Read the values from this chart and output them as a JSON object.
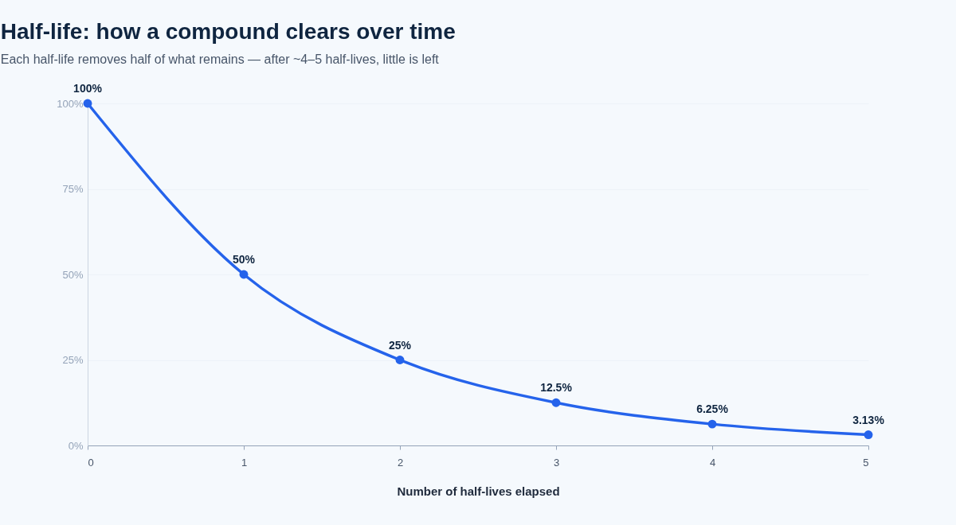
{
  "chart_data": {
    "type": "line",
    "title": "Half-life: how a compound clears over time",
    "subtitle": "Each half-life removes half of what remains — after ~4–5 half-lives, little is left",
    "xlabel": "Number of half-lives elapsed",
    "x": [
      0,
      1,
      2,
      3,
      4,
      5
    ],
    "series": [
      {
        "color": "#2563eb",
        "values": [
          100,
          50,
          25,
          12.5,
          6.25,
          3.125
        ],
        "value_labels": [
          "100%",
          "50%",
          "25%",
          "12.5%",
          "6.25%",
          "3.13%"
        ]
      }
    ],
    "xlim": [
      0,
      5
    ],
    "xticks": [
      0,
      1,
      2,
      3,
      4,
      5
    ],
    "ylim": [
      0,
      100
    ],
    "yticks": [
      {
        "value": 0,
        "label": "0%"
      },
      {
        "value": 25,
        "label": "25%"
      },
      {
        "value": 50,
        "label": "50%"
      },
      {
        "value": 75,
        "label": "75%"
      },
      {
        "value": 100,
        "label": "100%"
      }
    ],
    "grid": "y",
    "marker": "circle",
    "line_style": "solid"
  }
}
